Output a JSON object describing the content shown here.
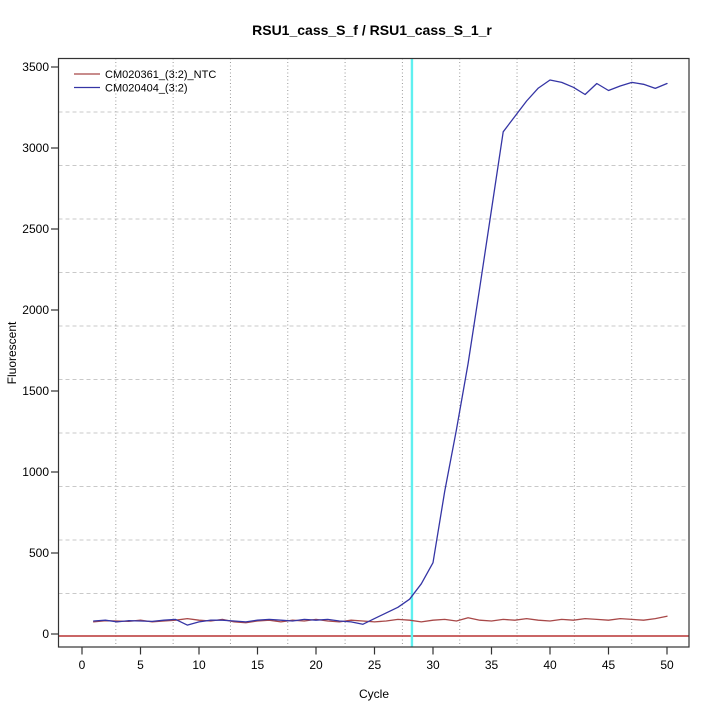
{
  "chart_data": {
    "type": "line",
    "title": "RSU1_cass_S_f / RSU1_cass_S_1_r",
    "xlabel": "Cycle",
    "ylabel": "Fluorescent",
    "xlim": [
      0,
      50
    ],
    "ylim": [
      0,
      3500
    ],
    "xticks": [
      0,
      5,
      10,
      15,
      20,
      25,
      30,
      35,
      40,
      45,
      50
    ],
    "yticks": [
      0,
      500,
      1000,
      1500,
      2000,
      2500,
      3000,
      3500
    ],
    "grid": {
      "on": true,
      "nx": 11,
      "ny": 11,
      "h_style": "dashed",
      "v_style": "dotted",
      "h_color": "#c9c9c9",
      "v_color": "#9a9a9a"
    },
    "legend_position": "top-left",
    "threshold_line": {
      "y": 0,
      "color": "#c35151"
    },
    "ct_marker_line": {
      "x": 28.2,
      "color": "#5ff0f0"
    },
    "x": [
      1,
      2,
      3,
      4,
      5,
      6,
      7,
      8,
      9,
      10,
      11,
      12,
      13,
      14,
      15,
      16,
      17,
      18,
      19,
      20,
      21,
      22,
      23,
      24,
      25,
      26,
      27,
      28,
      29,
      30,
      31,
      32,
      33,
      34,
      35,
      36,
      37,
      38,
      39,
      40,
      41,
      42,
      43,
      44,
      45,
      46,
      47,
      48,
      49,
      50
    ],
    "series": [
      {
        "name": "CM020361_(3:2)_NTC",
        "color": "#a84848",
        "values": [
          75,
          82,
          80,
          78,
          85,
          75,
          80,
          85,
          95,
          85,
          80,
          90,
          75,
          70,
          80,
          85,
          75,
          85,
          80,
          90,
          80,
          75,
          85,
          80,
          75,
          80,
          90,
          85,
          75,
          85,
          90,
          80,
          100,
          85,
          80,
          90,
          85,
          95,
          85,
          80,
          90,
          85,
          95,
          90,
          85,
          95,
          90,
          85,
          95,
          110
        ]
      },
      {
        "name": "CM020404_(3:2)",
        "color": "#3535a5",
        "values": [
          80,
          85,
          75,
          82,
          80,
          78,
          85,
          90,
          55,
          75,
          85,
          85,
          80,
          75,
          85,
          90,
          85,
          80,
          90,
          85,
          90,
          80,
          75,
          60,
          95,
          130,
          165,
          215,
          310,
          440,
          880,
          1260,
          1670,
          2140,
          2620,
          3100,
          3195,
          3290,
          3370,
          3420,
          3405,
          3375,
          3330,
          3398,
          3355,
          3383,
          3405,
          3393,
          3368,
          3398
        ]
      }
    ]
  }
}
